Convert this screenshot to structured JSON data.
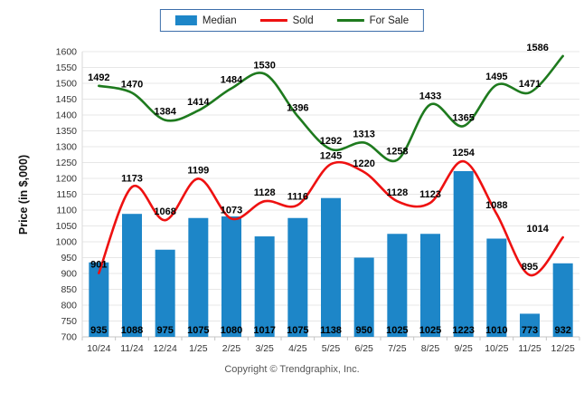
{
  "legend": {
    "border_color": "#3c6eaa",
    "items": [
      {
        "label": "Median",
        "swatch": "box",
        "color": "#1d86c8"
      },
      {
        "label": "Sold",
        "swatch": "line",
        "color": "#ee1111"
      },
      {
        "label": "For Sale",
        "swatch": "line",
        "color": "#1e7a1e"
      }
    ]
  },
  "chart_data": {
    "type": "bar+line",
    "title": "",
    "xlabel": "",
    "ylabel": "Price (in $,000)",
    "ylim": [
      700,
      1600
    ],
    "ytick_step": 50,
    "grid": "horizontal",
    "legend_position": "top-center",
    "value_labels": true,
    "categories": [
      "10/24",
      "11/24",
      "12/24",
      "1/25",
      "2/25",
      "3/25",
      "4/25",
      "5/25",
      "6/25",
      "7/25",
      "8/25",
      "9/25",
      "10/25",
      "11/25",
      "12/25"
    ],
    "series": [
      {
        "name": "Median",
        "type": "bar",
        "color": "#1d86c8",
        "values": [
          935,
          1088,
          975,
          1075,
          1080,
          1017,
          1075,
          1138,
          950,
          1025,
          1025,
          1223,
          1010,
          773,
          932
        ]
      },
      {
        "name": "Sold",
        "type": "line",
        "color": "#ee1111",
        "values": [
          901,
          1173,
          1068,
          1199,
          1073,
          1128,
          1116,
          1245,
          1220,
          1128,
          1123,
          1254,
          1088,
          895,
          1014
        ]
      },
      {
        "name": "For Sale",
        "type": "line",
        "color": "#1e7a1e",
        "values": [
          1492,
          1470,
          1384,
          1414,
          1484,
          1530,
          1396,
          1292,
          1313,
          1258,
          1433,
          1365,
          1495,
          1471,
          1586
        ]
      }
    ],
    "colors": {
      "gridline": "#e7e7e7",
      "axis": "#c4c4c4",
      "bar": "#1d86c8",
      "sold_line": "#ee1111",
      "forsale_line": "#1e7a1e"
    }
  },
  "footer": {
    "copyright": "Copyright © Trendgraphix, Inc."
  }
}
